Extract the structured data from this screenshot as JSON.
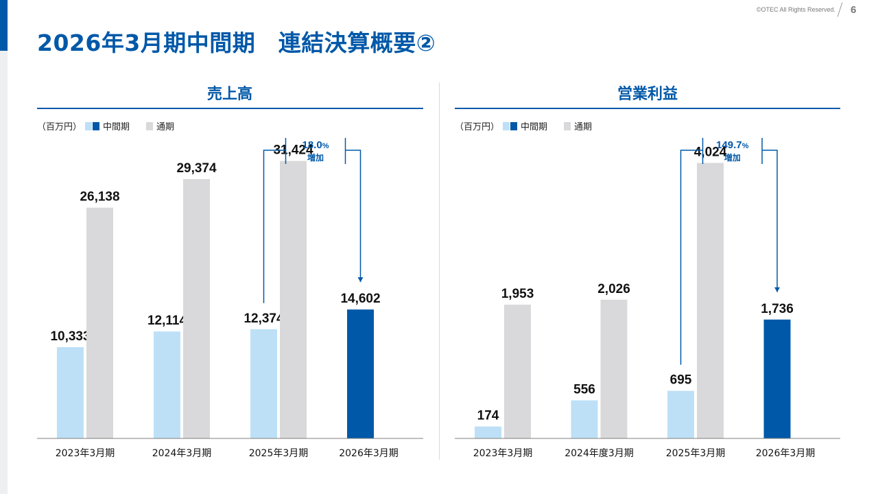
{
  "header": {
    "title": "2026年3月期中間期　連結決算概要②",
    "copyright": "©OTEC All Rights Reserved.",
    "page_number": "6"
  },
  "colors": {
    "interim": "#bde0f7",
    "fullyear": "#d9d9db",
    "current": "#0058a8",
    "accent": "#0058a8"
  },
  "chart_data": [
    {
      "type": "bar",
      "title": "売上高",
      "unit_label": "（百万円）",
      "legend": [
        {
          "key": "interim",
          "label": "中間期"
        },
        {
          "key": "fullyear",
          "label": "通期"
        }
      ],
      "categories": [
        "2023年3月期",
        "2024年3月期",
        "2025年3月期",
        "2026年3月期"
      ],
      "series": [
        {
          "name": "中間期",
          "values": [
            10333,
            12114,
            12374,
            14602
          ],
          "labels": [
            "10,333",
            "12,114",
            "12,374",
            "14,602"
          ]
        },
        {
          "name": "通期",
          "values": [
            26138,
            29374,
            31424,
            null
          ],
          "labels": [
            "26,138",
            "29,374",
            "31,424",
            ""
          ]
        }
      ],
      "ylim": [
        0,
        38000
      ],
      "annotation": {
        "value": "18.0",
        "unit": "%",
        "text": "増加",
        "from_category": 2,
        "to_category": 3
      }
    },
    {
      "type": "bar",
      "title": "営業利益",
      "unit_label": "（百万円）",
      "legend": [
        {
          "key": "interim",
          "label": "中間期"
        },
        {
          "key": "fullyear",
          "label": "通期"
        }
      ],
      "categories": [
        "2023年3月期",
        "2024年度3月期",
        "2025年3月期",
        "2026年3月期"
      ],
      "series": [
        {
          "name": "中間期",
          "values": [
            174,
            556,
            695,
            1736
          ],
          "labels": [
            "174",
            "556",
            "695",
            "1,736"
          ]
        },
        {
          "name": "通期",
          "values": [
            1953,
            2026,
            4024,
            null
          ],
          "labels": [
            "1,953",
            "2,026",
            "4,024",
            ""
          ]
        }
      ],
      "ylim": [
        0,
        4900
      ],
      "annotation": {
        "value": "149.7",
        "unit": "%",
        "text": "増加",
        "from_category": 2,
        "to_category": 3
      }
    }
  ]
}
